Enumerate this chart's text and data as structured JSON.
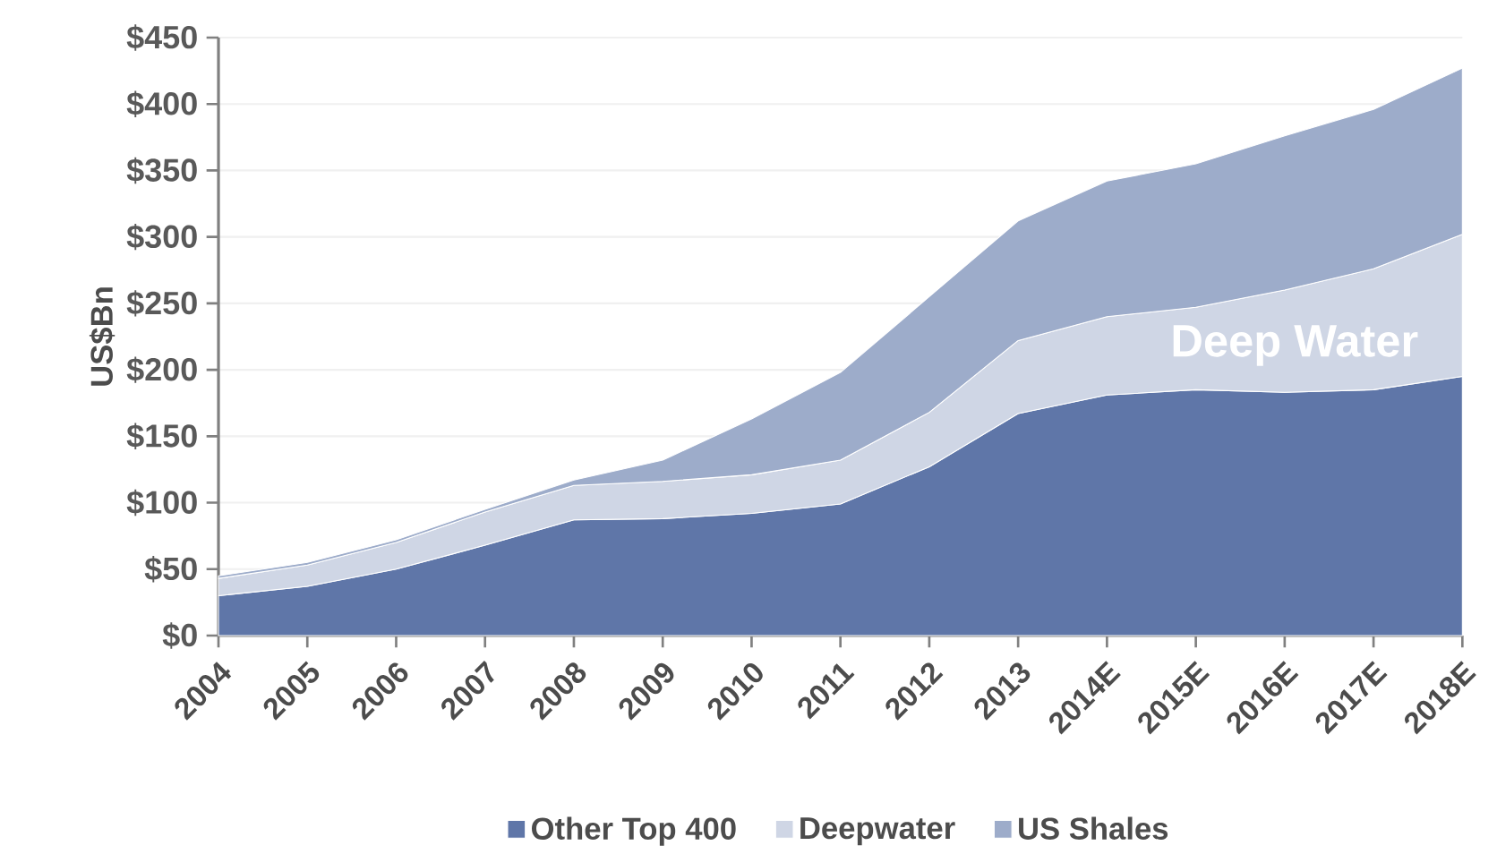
{
  "chart_data": {
    "type": "area",
    "stacked": true,
    "ylabel": "US$Bn",
    "categories": [
      "2004",
      "2005",
      "2006",
      "2007",
      "2008",
      "2009",
      "2010",
      "2011",
      "2012",
      "2013",
      "2014E",
      "2015E",
      "2016E",
      "2017E",
      "2018E"
    ],
    "series": [
      {
        "name": "Other Top 400",
        "color": "#5f76a8",
        "values": [
          30,
          37,
          50,
          68,
          87,
          88,
          92,
          99,
          127,
          167,
          181,
          185,
          183,
          185,
          195
        ]
      },
      {
        "name": "Deepwater",
        "color": "#cfd6e5",
        "values": [
          13,
          16,
          20,
          25,
          26,
          28,
          29,
          33,
          41,
          55,
          59,
          62,
          77,
          91,
          107
        ]
      },
      {
        "name": "US Shales",
        "color": "#9dacca",
        "values": [
          2,
          2,
          2,
          2,
          4,
          16,
          42,
          66,
          87,
          90,
          102,
          108,
          116,
          120,
          125
        ]
      }
    ],
    "ylim": [
      0,
      450
    ],
    "yticks": [
      {
        "value": 0,
        "label": "$0"
      },
      {
        "value": 50,
        "label": "$50"
      },
      {
        "value": 100,
        "label": "$100"
      },
      {
        "value": 150,
        "label": "$150"
      },
      {
        "value": 200,
        "label": "$200"
      },
      {
        "value": 250,
        "label": "$250"
      },
      {
        "value": 300,
        "label": "$300"
      },
      {
        "value": 350,
        "label": "$350"
      },
      {
        "value": 400,
        "label": "$400"
      },
      {
        "value": 450,
        "label": "$450"
      }
    ],
    "annotations": [
      "Deep Water"
    ],
    "grid": "y",
    "legend": "bottom"
  }
}
